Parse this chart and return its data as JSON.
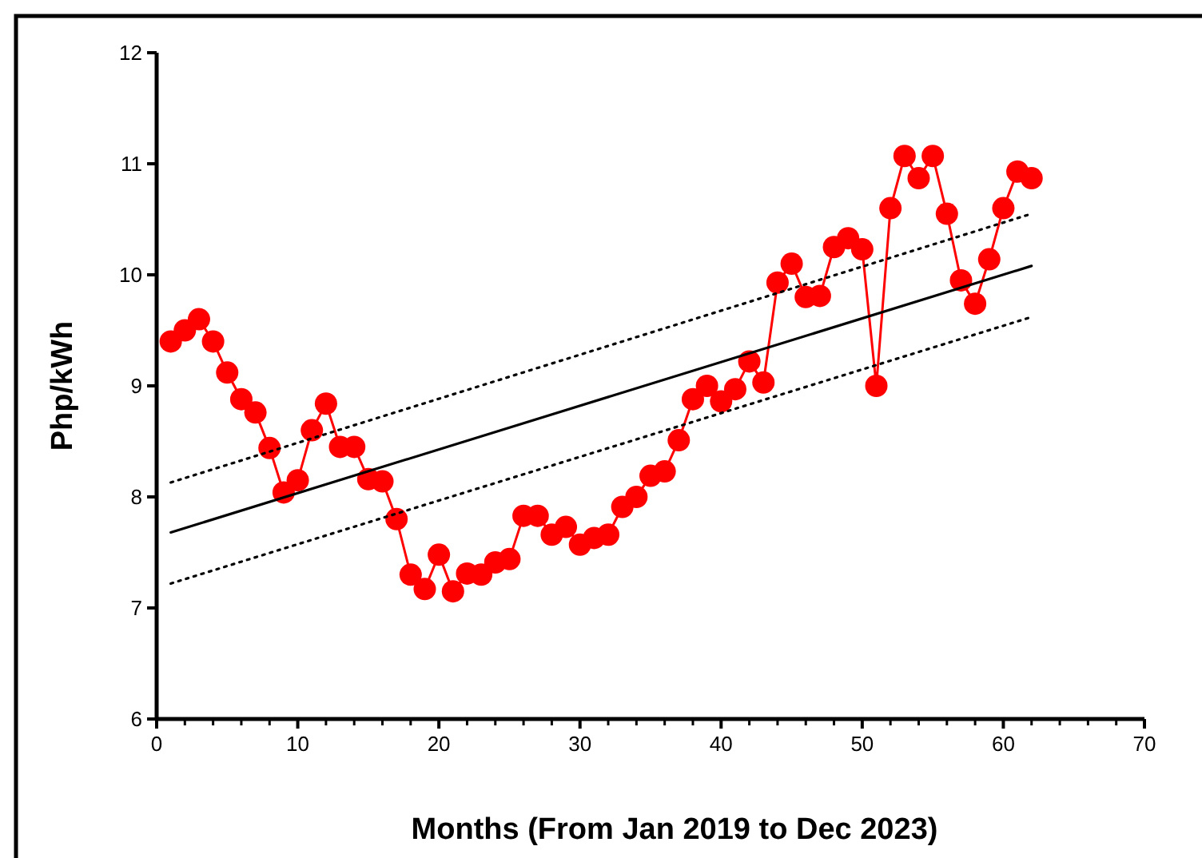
{
  "chart_data": {
    "type": "line",
    "xlabel": "Months (From Jan 2019 to Dec 2023)",
    "ylabel": "Php/kWh",
    "xlim": [
      0,
      70
    ],
    "ylim": [
      6,
      12
    ],
    "xticks": [
      0,
      {
        "value": 2,
        "label": null
      },
      {
        "value": 4,
        "label": null
      },
      {
        "value": 6,
        "label": null
      },
      {
        "value": 8,
        "label": null
      },
      10,
      {
        "value": 12,
        "label": null
      },
      {
        "value": 14,
        "label": null
      },
      {
        "value": 16,
        "label": null
      },
      {
        "value": 18,
        "label": null
      },
      20,
      {
        "value": 22,
        "label": null
      },
      {
        "value": 24,
        "label": null
      },
      {
        "value": 26,
        "label": null
      },
      {
        "value": 28,
        "label": null
      },
      30,
      {
        "value": 32,
        "label": null
      },
      {
        "value": 34,
        "label": null
      },
      {
        "value": 36,
        "label": null
      },
      {
        "value": 38,
        "label": null
      },
      40,
      {
        "value": 42,
        "label": null
      },
      {
        "value": 44,
        "label": null
      },
      {
        "value": 46,
        "label": null
      },
      {
        "value": 48,
        "label": null
      },
      50,
      {
        "value": 52,
        "label": null
      },
      {
        "value": 54,
        "label": null
      },
      {
        "value": 56,
        "label": null
      },
      {
        "value": 58,
        "label": null
      },
      60,
      {
        "value": 62,
        "label": null
      },
      {
        "value": 64,
        "label": null
      },
      {
        "value": 66,
        "label": null
      },
      {
        "value": 68,
        "label": null
      },
      70
    ],
    "yticks": [
      6,
      7,
      8,
      9,
      10,
      11,
      12
    ],
    "grid": false,
    "series": [
      {
        "color": "#ff0000",
        "marker": "circle",
        "line_style": "solid",
        "x": [
          1,
          2,
          3,
          4,
          5,
          6,
          7,
          8,
          9,
          10,
          11,
          12,
          13,
          14,
          15,
          16,
          17,
          18,
          19,
          20,
          21,
          22,
          23,
          24,
          25,
          26,
          27,
          28,
          29,
          30,
          31,
          32,
          33,
          34,
          35,
          36,
          37,
          38,
          39,
          40,
          41,
          42,
          43,
          44,
          45,
          46,
          47,
          48,
          49,
          50,
          51,
          52,
          53,
          54,
          55,
          56,
          57,
          58,
          59,
          60,
          61,
          62
        ],
        "values": [
          9.4,
          9.5,
          9.6,
          9.4,
          9.12,
          8.88,
          8.76,
          8.44,
          8.04,
          8.15,
          8.6,
          8.84,
          8.45,
          8.45,
          8.16,
          8.14,
          7.8,
          7.3,
          7.17,
          7.48,
          7.15,
          7.31,
          7.3,
          7.41,
          7.44,
          7.83,
          7.83,
          7.66,
          7.73,
          7.57,
          7.63,
          7.66,
          7.91,
          8.0,
          8.19,
          8.23,
          8.51,
          8.88,
          9.0,
          8.86,
          8.97,
          9.22,
          9.03,
          9.93,
          10.1,
          9.8,
          9.81,
          10.25,
          10.33,
          10.23,
          9.0,
          10.6,
          11.07,
          10.87,
          11.07,
          10.55,
          9.95,
          9.74,
          10.14,
          10.6,
          10.93,
          10.87
        ]
      },
      {
        "color": "#000000",
        "marker": "none",
        "line_style": "solid",
        "x": [
          1,
          62
        ],
        "values": [
          7.68,
          10.08
        ]
      },
      {
        "color": "#000000",
        "marker": "none",
        "line_style": "dotted",
        "x": [
          1,
          62
        ],
        "values": [
          8.13,
          10.55
        ]
      },
      {
        "color": "#000000",
        "marker": "none",
        "line_style": "dotted",
        "x": [
          1,
          62
        ],
        "values": [
          7.22,
          9.62
        ]
      }
    ]
  }
}
